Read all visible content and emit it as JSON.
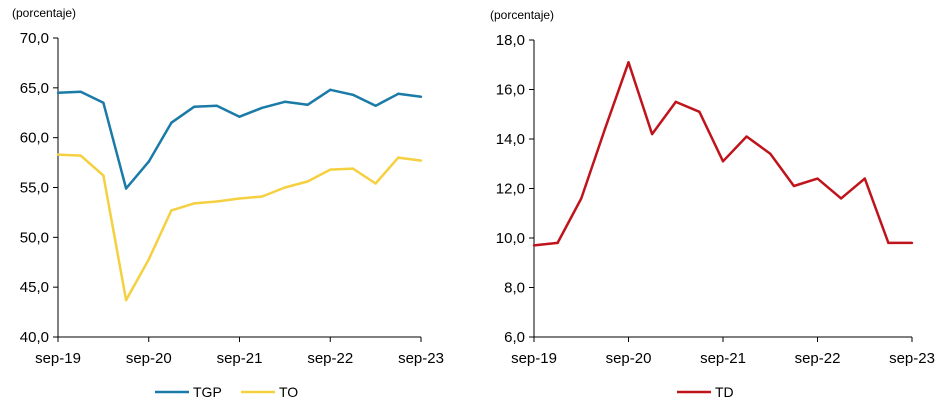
{
  "chart_data": [
    {
      "type": "line",
      "unit_label": "(porcentaje)",
      "x": [
        "sep-19",
        "dic-19",
        "mar-20",
        "jun-20",
        "sep-20",
        "dic-20",
        "mar-21",
        "jun-21",
        "sep-21",
        "dic-21",
        "mar-22",
        "jun-22",
        "sep-22",
        "dic-22",
        "mar-23",
        "jun-23",
        "sep-23"
      ],
      "xtick_labels": [
        "sep-19",
        "sep-20",
        "sep-21",
        "sep-22",
        "sep-23"
      ],
      "ylim": [
        40,
        70
      ],
      "yticks": [
        "40,0",
        "45,0",
        "50,0",
        "55,0",
        "60,0",
        "65,0",
        "70,0"
      ],
      "grid": false,
      "legend_position": "bottom",
      "series": [
        {
          "name": "TGP",
          "color": "#1a7aa8",
          "values": [
            64.5,
            64.6,
            63.5,
            54.9,
            57.6,
            61.5,
            63.1,
            63.2,
            62.1,
            63.0,
            63.6,
            63.3,
            64.8,
            64.3,
            63.2,
            64.4,
            64.1
          ]
        },
        {
          "name": "TO",
          "color": "#f5d040",
          "values": [
            58.3,
            58.2,
            56.2,
            43.7,
            47.8,
            52.7,
            53.4,
            53.6,
            53.9,
            54.1,
            55.0,
            55.6,
            56.8,
            56.9,
            55.4,
            58.0,
            57.7
          ]
        }
      ]
    },
    {
      "type": "line",
      "unit_label": "(porcentaje)",
      "x": [
        "sep-19",
        "dic-19",
        "mar-20",
        "jun-20",
        "sep-20",
        "dic-20",
        "mar-21",
        "jun-21",
        "sep-21",
        "dic-21",
        "mar-22",
        "jun-22",
        "sep-22",
        "dic-22",
        "mar-23",
        "jun-23",
        "sep-23"
      ],
      "xtick_labels": [
        "sep-19",
        "sep-20",
        "sep-21",
        "sep-22",
        "sep-23"
      ],
      "ylim": [
        6,
        18
      ],
      "yticks": [
        "6,0",
        "8,0",
        "10,0",
        "12,0",
        "14,0",
        "16,0",
        "18,0"
      ],
      "grid": false,
      "legend_position": "bottom",
      "series": [
        {
          "name": "TD",
          "color": "#c0141c",
          "values": [
            9.7,
            9.8,
            11.6,
            14.4,
            17.1,
            14.2,
            15.5,
            15.1,
            13.1,
            14.1,
            13.4,
            12.1,
            12.4,
            11.6,
            12.4,
            9.8,
            9.8
          ]
        }
      ]
    }
  ]
}
